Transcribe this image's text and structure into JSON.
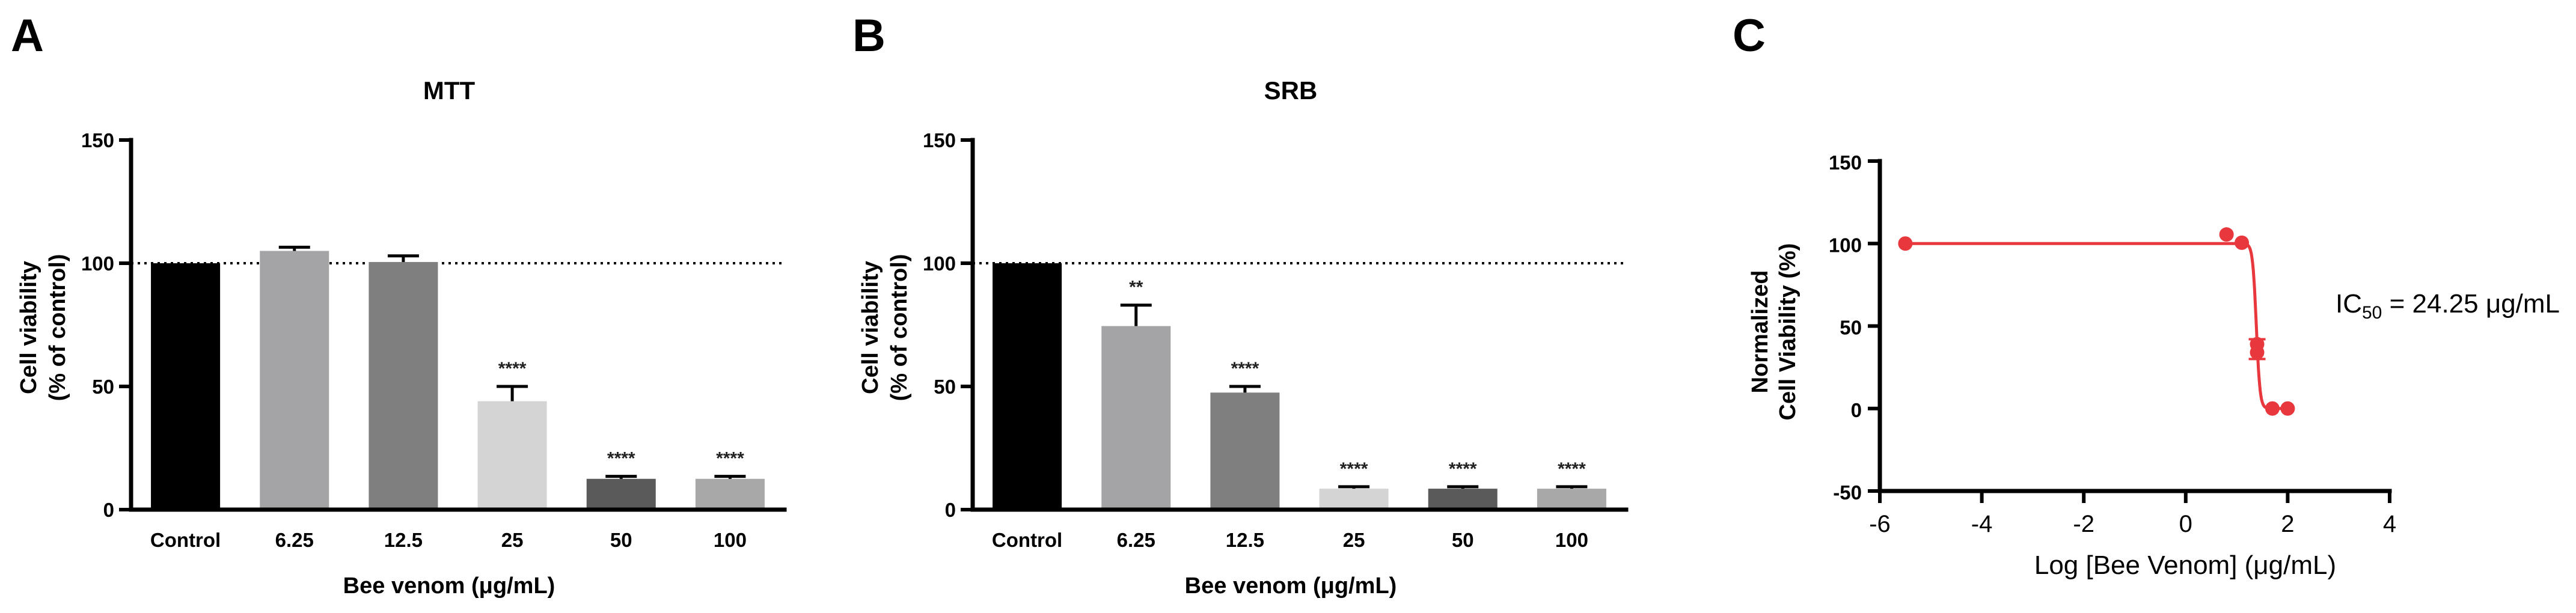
{
  "chart_data": [
    {
      "panel_label": "A",
      "type": "bar",
      "title": "MTT",
      "xlabel": "Bee venom (μg/mL)",
      "ylabel_lines": [
        "Cell viability",
        "(% of control)"
      ],
      "ylim": [
        0,
        150
      ],
      "yticks": [
        "0",
        "50",
        "100",
        "150"
      ],
      "reference_line": 100,
      "grid": false,
      "categories": [
        "Control",
        "6.25",
        "12.5",
        "25",
        "50",
        "100"
      ],
      "values": [
        100,
        105,
        100.5,
        44,
        12.5,
        12.5
      ],
      "errors": [
        0,
        1.5,
        2.5,
        6,
        1,
        1
      ],
      "significance": [
        "",
        "",
        "",
        "****",
        "****",
        "****"
      ],
      "bar_colors": [
        "#000000",
        "#a4a4a6",
        "#7f7f7f",
        "#d4d4d4",
        "#5a5a5a",
        "#a8a8a8"
      ]
    },
    {
      "panel_label": "B",
      "type": "bar",
      "title": "SRB",
      "xlabel": "Bee venom (μg/mL)",
      "ylabel_lines": [
        "Cell viability",
        "(% of control)"
      ],
      "ylim": [
        0,
        150
      ],
      "yticks": [
        "0",
        "50",
        "100",
        "150"
      ],
      "reference_line": 100,
      "grid": false,
      "categories": [
        "Control",
        "6.25",
        "12.5",
        "25",
        "50",
        "100"
      ],
      "values": [
        100,
        74.5,
        47.5,
        8.5,
        8.5,
        8.5
      ],
      "errors": [
        0,
        8.5,
        2.5,
        0.8,
        0.8,
        0.8
      ],
      "significance": [
        "",
        "**",
        "****",
        "****",
        "****",
        "****"
      ],
      "bar_colors": [
        "#000000",
        "#a4a4a6",
        "#7f7f7f",
        "#d4d4d4",
        "#5a5a5a",
        "#a8a8a8"
      ]
    },
    {
      "panel_label": "C",
      "type": "scatter",
      "xlabel": "Log [Bee Venom] (μg/mL)",
      "ylabel_lines": [
        "Normalized",
        "Cell Viability (%)"
      ],
      "xlim": [
        -6,
        4
      ],
      "ylim": [
        -50,
        150
      ],
      "xticks": [
        "-6",
        "-4",
        "-2",
        "0",
        "2",
        "4"
      ],
      "yticks": [
        "-50",
        "0",
        "50",
        "100",
        "150"
      ],
      "grid": false,
      "color": "#e8383d",
      "points": [
        {
          "x": -5.5,
          "y": 100
        },
        {
          "x": 0.8,
          "y": 105.5
        },
        {
          "x": 1.1,
          "y": 100.5
        },
        {
          "x": 1.4,
          "y": 39
        },
        {
          "x": 1.4,
          "y": 34
        },
        {
          "x": 1.7,
          "y": 0
        },
        {
          "x": 2.0,
          "y": 0
        }
      ],
      "error_bars": [
        {
          "x": 1.4,
          "y": 36,
          "err": 6
        }
      ],
      "fit_curve": {
        "top": 100,
        "bottom": 0,
        "log_ic50": 1.385,
        "hill": -12
      },
      "annotation": {
        "prefix": "IC",
        "subscript": "50",
        "suffix": " = 24.25 μg/mL"
      }
    }
  ]
}
